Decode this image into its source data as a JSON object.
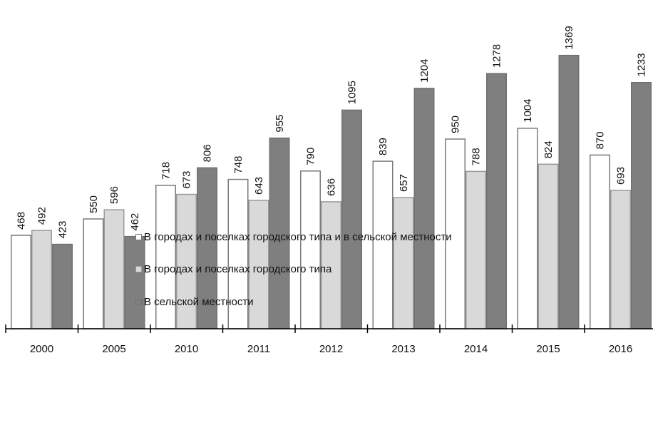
{
  "colors": {
    "series0_fill": "#ffffff",
    "series0_stroke": "#7a7a7a",
    "series1_fill": "#d9d9d9",
    "series1_stroke": "#9a9a9a",
    "series2_fill": "#7f7f7f",
    "series2_stroke": "#707070",
    "axis": "#000000"
  },
  "chart_data": {
    "type": "bar",
    "categories": [
      "2000",
      "2005",
      "2010",
      "2011",
      "2012",
      "2013",
      "2014",
      "2015",
      "2016"
    ],
    "series": [
      {
        "name": "В городах и поселках городского типа и в сельской местности",
        "values": [
          468,
          550,
          718,
          748,
          790,
          839,
          950,
          1004,
          870
        ]
      },
      {
        "name": "В городах и поселках городского типа",
        "values": [
          492,
          596,
          673,
          643,
          636,
          657,
          788,
          824,
          693
        ]
      },
      {
        "name": "В сельской местности",
        "values": [
          423,
          462,
          806,
          955,
          1095,
          1204,
          1278,
          1369,
          1233
        ]
      }
    ],
    "title": "",
    "xlabel": "",
    "ylabel": "",
    "ylim": [
      0,
      1480
    ],
    "grid": false,
    "data_labels": true,
    "legend_position": "bottom"
  }
}
